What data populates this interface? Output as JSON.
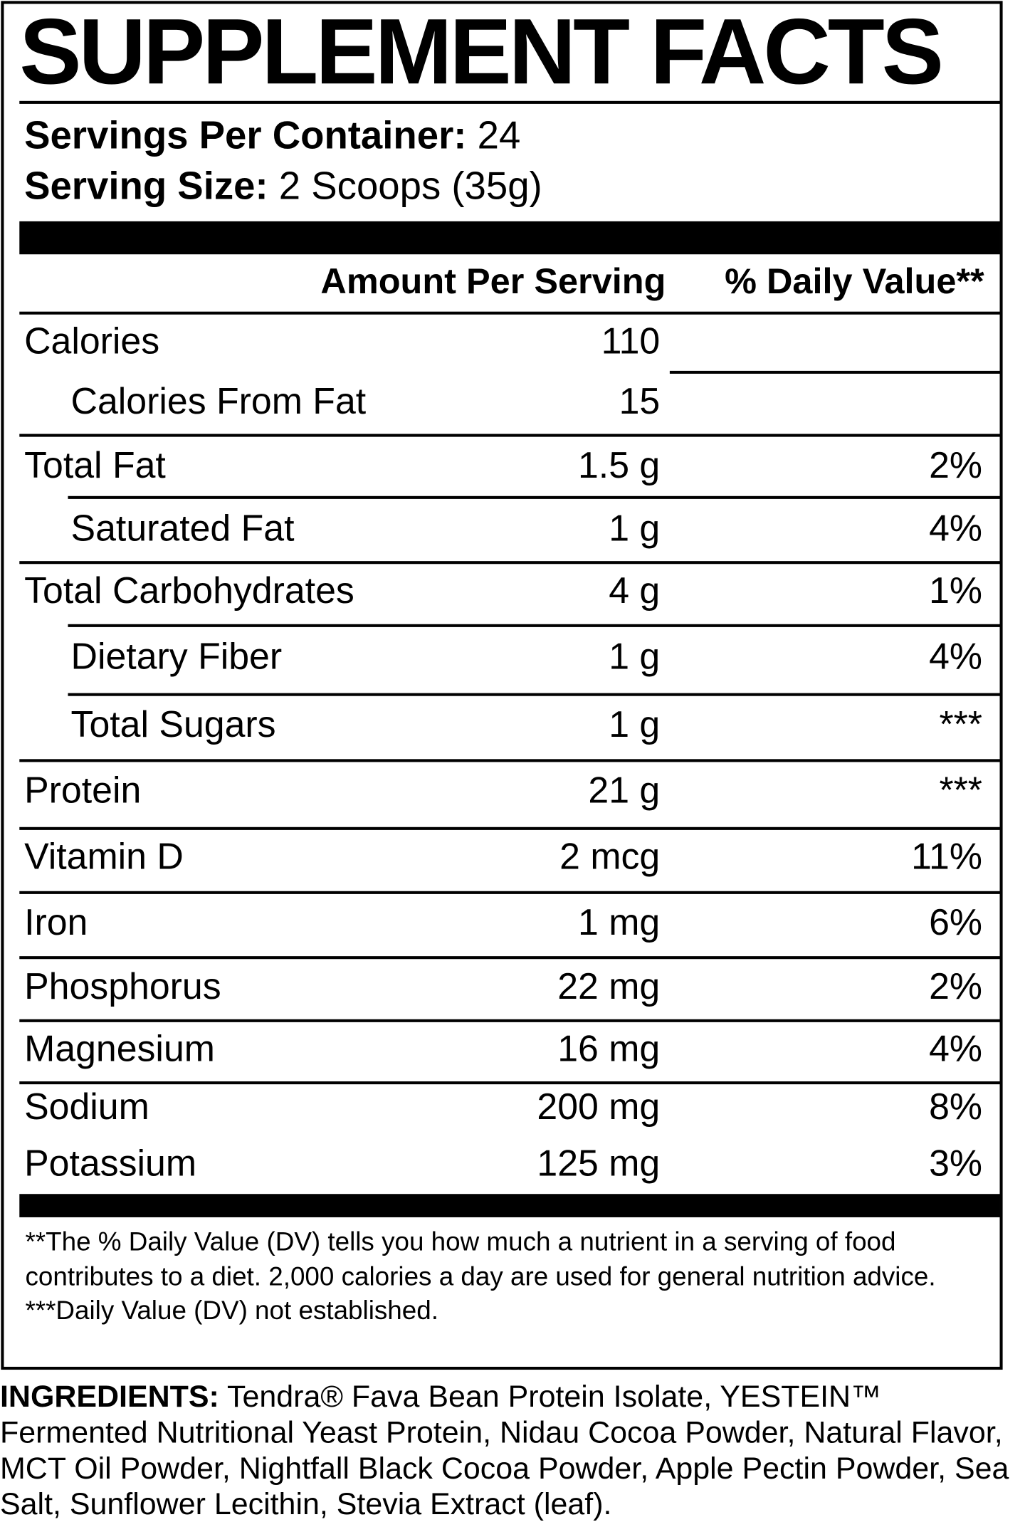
{
  "title": "SUPPLEMENT FACTS",
  "servings": {
    "label": "Servings Per Container:",
    "value": "24"
  },
  "serving_size": {
    "label": "Serving Size:",
    "value": "2 Scoops (35g)"
  },
  "table": {
    "header": {
      "amount": "Amount Per Serving",
      "dv": "% Daily Value**"
    },
    "rows": [
      {
        "name": "Calories",
        "amount": "110"
      },
      {
        "name": "Calories From Fat",
        "amount": "15"
      },
      {
        "name": "Total Fat",
        "amount": "1.5 g",
        "dv": "2%"
      },
      {
        "name": "Saturated Fat",
        "amount": "1 g",
        "dv": "4%"
      },
      {
        "name": "Total Carbohydrates",
        "amount": "4 g",
        "dv": "1%"
      },
      {
        "name": "Dietary Fiber",
        "amount": "1 g",
        "dv": "4%"
      },
      {
        "name": "Total Sugars",
        "amount": "1 g",
        "dv": "***"
      },
      {
        "name": "Protein",
        "amount": "21 g",
        "dv": "***"
      },
      {
        "name": "Vitamin D",
        "amount": "2 mcg",
        "dv": "11%"
      },
      {
        "name": "Iron",
        "amount": "1 mg",
        "dv": "6%"
      },
      {
        "name": "Phosphorus",
        "amount": "22 mg",
        "dv": "2%"
      },
      {
        "name": "Magnesium",
        "amount": "16 mg",
        "dv": "4%"
      },
      {
        "name": "Sodium",
        "amount": "200 mg",
        "dv": "8%"
      },
      {
        "name": "Potassium",
        "amount": "125 mg",
        "dv": "3%"
      }
    ]
  },
  "footnotes": [
    "**The % Daily Value (DV) tells you how much a nutrient in a serving of food contributes to a diet. 2,000 calories a day are used for general nutrition advice.",
    "***Daily Value (DV) not established."
  ],
  "ingredients": {
    "label": "INGREDIENTS:",
    "text": "Tendra® Fava Bean Protein Isolate, YESTEIN™ Fermented Nutritional Yeast Protein, Nidau Cocoa Powder, Natural Flavor, MCT Oil Powder, Nightfall Black Cocoa Powder, Apple Pectin Powder, Sea Salt, Sunflower Lecithin, Stevia Extract (leaf)."
  }
}
